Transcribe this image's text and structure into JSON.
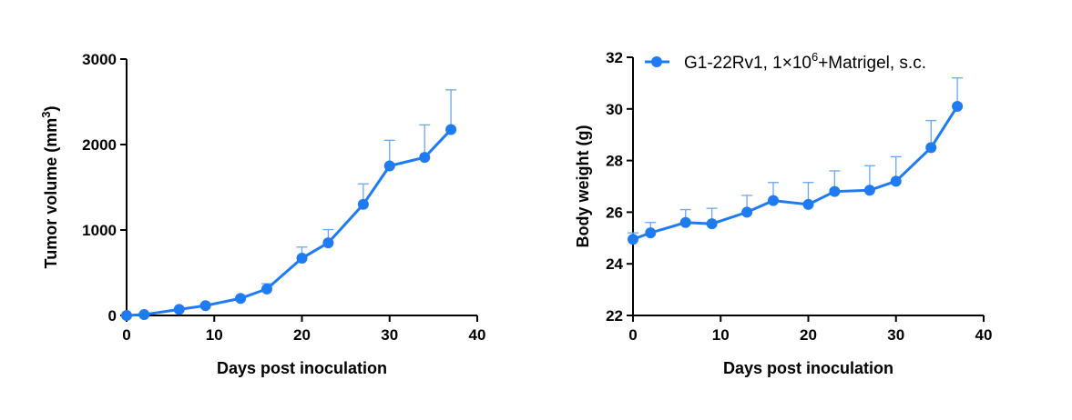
{
  "series_color": "#1f7bf4",
  "error_color": "#6aa6f6",
  "legend": {
    "prefix": "G1-22Rv1, 1×10",
    "sup": "6",
    "suffix": "+Matrigel, s.c.",
    "marker": "circle"
  },
  "chart_data": [
    {
      "type": "line",
      "xlabel": "Days post inoculation",
      "ylabel": {
        "text": "Tumor volume (mm",
        "sup": "3",
        "end": ")"
      },
      "xlim": [
        0,
        40
      ],
      "ylim": [
        0,
        3000
      ],
      "xticks": [
        0,
        10,
        20,
        30,
        40
      ],
      "yticks": [
        0,
        1000,
        2000,
        3000
      ],
      "grid": false,
      "x": [
        0,
        2,
        6,
        9,
        13,
        16,
        20,
        23,
        27,
        30,
        34,
        37
      ],
      "y": [
        0,
        10,
        70,
        115,
        200,
        310,
        670,
        850,
        1300,
        1750,
        1850,
        2175
      ],
      "error_upper": [
        0,
        15,
        80,
        130,
        215,
        372,
        800,
        1005,
        1540,
        2050,
        2230,
        2640
      ]
    },
    {
      "type": "line",
      "xlabel": "Days post inoculation",
      "ylabel": {
        "text": "Body weight (g)"
      },
      "xlim": [
        0,
        40
      ],
      "ylim": [
        22,
        32
      ],
      "xticks": [
        0,
        10,
        20,
        30,
        40
      ],
      "yticks": [
        22,
        24,
        26,
        28,
        30,
        32
      ],
      "grid": false,
      "legend_position": "top",
      "x": [
        0,
        2,
        6,
        9,
        13,
        16,
        20,
        23,
        27,
        30,
        34,
        37
      ],
      "y": [
        24.95,
        25.2,
        25.6,
        25.55,
        26.0,
        26.45,
        26.3,
        26.8,
        26.85,
        27.2,
        28.5,
        30.1
      ],
      "error_upper": [
        25.2,
        25.6,
        26.1,
        26.15,
        26.65,
        27.15,
        27.15,
        27.6,
        27.8,
        28.15,
        29.55,
        31.2
      ]
    }
  ]
}
